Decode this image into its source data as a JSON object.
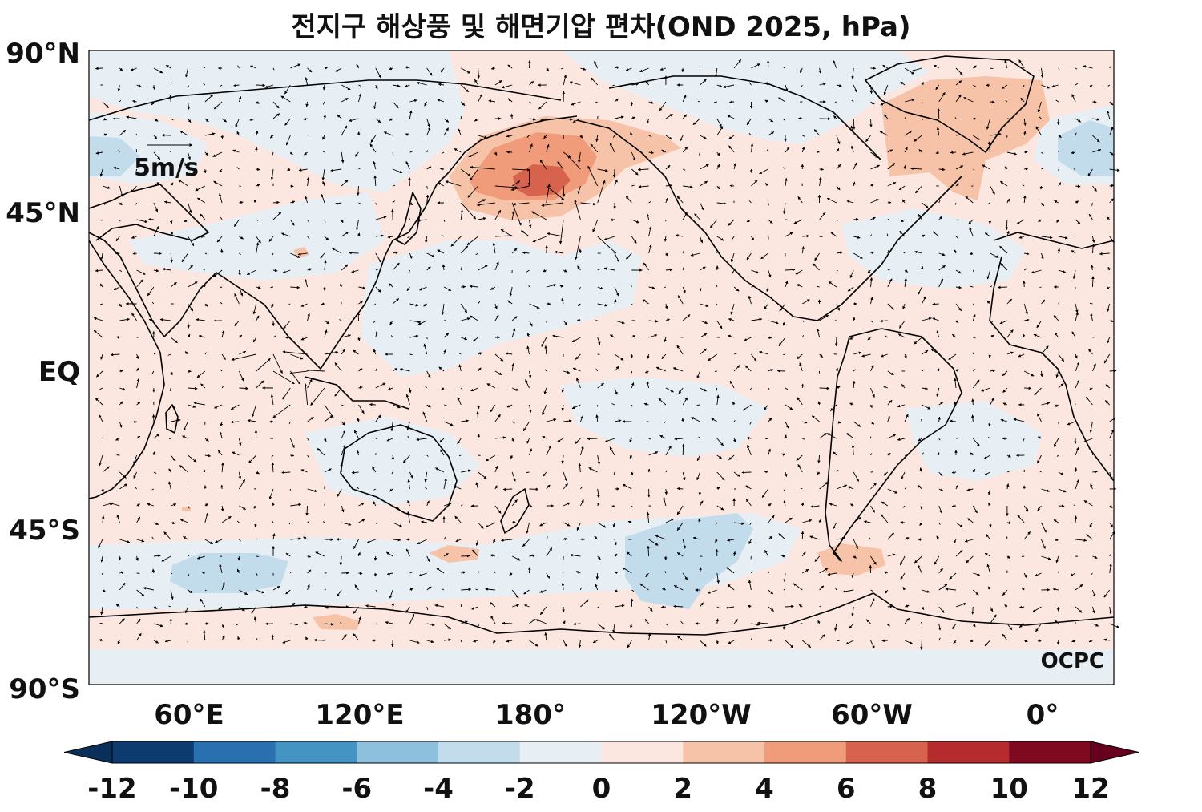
{
  "title": "전지구 해상풍 및 해면기압 편차(OND 2025, hPa)",
  "map": {
    "lat_labels": [
      "90°N",
      "45°N",
      "EQ",
      "45°S",
      "90°S"
    ],
    "lon_labels": [
      "60°E",
      "120°E",
      "180°",
      "120°W",
      "60°W",
      "0°"
    ],
    "wind_reference_label": "5m/s",
    "watermark": "OCPC",
    "land_outline_color": "#000000",
    "anomaly_regions": [
      {
        "name": "north-pacific-high-anomaly",
        "level": 6
      },
      {
        "name": "north-pacific-high-core",
        "level": 8
      },
      {
        "name": "greenland-positive",
        "level": 4
      },
      {
        "name": "south-pacific-negative",
        "level": -4
      },
      {
        "name": "south-indian-negative",
        "level": -4
      },
      {
        "name": "drake-positive",
        "level": 4
      },
      {
        "name": "north-atlantic-negative",
        "level": -2
      }
    ]
  },
  "colorbar": {
    "tick_labels": [
      "-12",
      "-10",
      "-8",
      "-6",
      "-4",
      "-2",
      "0",
      "2",
      "4",
      "6",
      "8",
      "10",
      "12"
    ],
    "colors": [
      "#0d3b6f",
      "#2a6fb0",
      "#4393c3",
      "#8dc0dd",
      "#c3dceb",
      "#e7eff5",
      "#fbe7e0",
      "#f7c3a8",
      "#f09b7a",
      "#d7634f",
      "#b62c2e",
      "#7f0a1f"
    ],
    "under_color": "#0a2f59",
    "over_color": "#67001f"
  }
}
